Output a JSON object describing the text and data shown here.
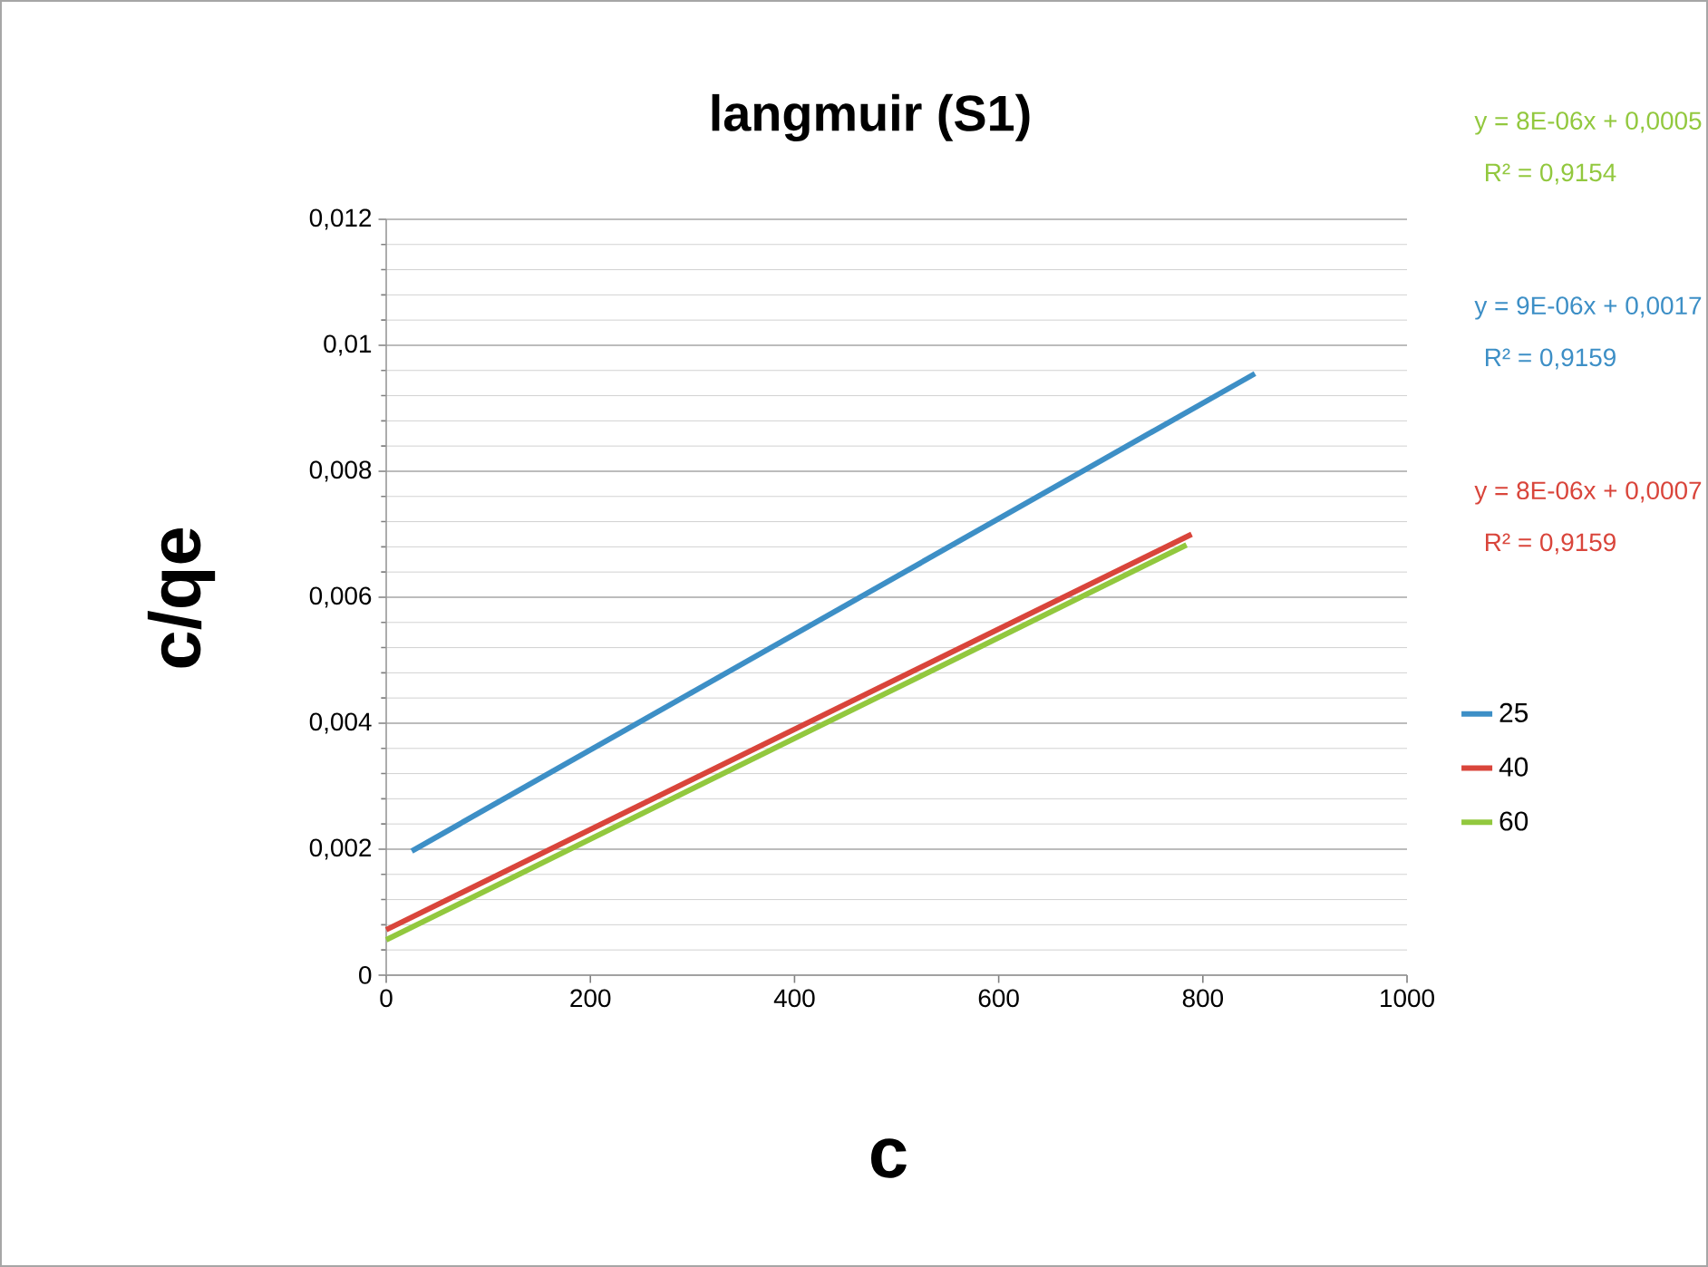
{
  "chart_data": {
    "type": "line",
    "title": "langmuir (S1)",
    "xlabel": "c",
    "ylabel": "c/qe",
    "series": [
      {
        "name": "25",
        "color": "#3d8fc6",
        "x": [
          25,
          851
        ],
        "values": [
          0.00197,
          0.00955
        ]
      },
      {
        "name": "40",
        "color": "#d9453b",
        "x": [
          0,
          789
        ],
        "values": [
          0.00072,
          0.007
        ]
      },
      {
        "name": "60",
        "color": "#92c83e",
        "x": [
          0,
          784
        ],
        "values": [
          0.00056,
          0.00683
        ]
      }
    ],
    "xlim": [
      0,
      1000
    ],
    "xticks": [
      0,
      200,
      400,
      600,
      800,
      1000
    ],
    "ylim": [
      0,
      0.012
    ],
    "yticks": [
      0,
      {
        "value": 0.002,
        "label": "0,002"
      },
      {
        "value": 0.004,
        "label": "0,004"
      },
      {
        "value": 0.006,
        "label": "0,006"
      },
      {
        "value": 0.008,
        "label": "0,008"
      },
      {
        "value": 0.01,
        "label": "0,01"
      },
      {
        "value": 0.012,
        "label": "0,012"
      }
    ],
    "grid": "y",
    "legend": "right",
    "marker": "none",
    "line_style": "solid",
    "annotations": [
      "y = 8E-06x + 0,0005",
      "R² = 0,9154",
      "y = 9E-06x + 0,0017",
      "R² = 0,9159",
      "y = 8E-06x + 0,0007",
      "R² = 0,9159"
    ]
  }
}
